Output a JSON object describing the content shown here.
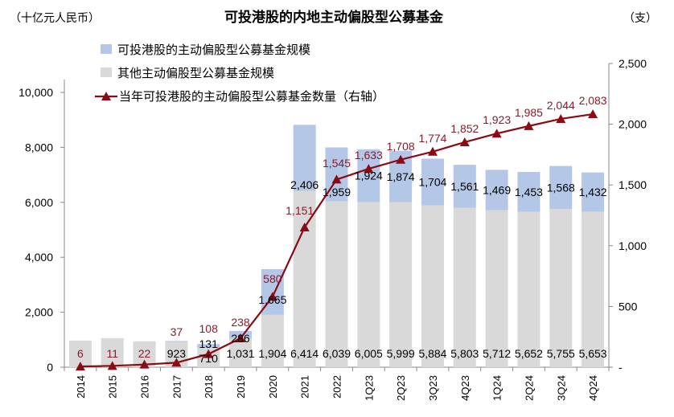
{
  "chart_data": {
    "type": "bar+line",
    "title": "可投港股的内地主动偏股型公募基金",
    "left_unit": "（十亿元人民币）",
    "right_unit": "（支）",
    "categories": [
      "2014",
      "2015",
      "2016",
      "2017",
      "2018",
      "2019",
      "2020",
      "2021",
      "2022",
      "1Q23",
      "2Q23",
      "3Q23",
      "4Q23",
      "1Q24",
      "2Q24",
      "3Q24",
      "4Q24"
    ],
    "left_axis": {
      "range": [
        0,
        10000
      ],
      "ticks": [
        "0",
        "2,000",
        "4,000",
        "6,000",
        "8,000",
        "10,000"
      ]
    },
    "right_axis": {
      "range": [
        0,
        2500
      ],
      "ticks": [
        "-",
        "500",
        "1,000",
        "1,500",
        "2,000",
        "2,500"
      ]
    },
    "grid": false,
    "legend_placement": "top-left",
    "series": [
      {
        "name": "可投港股的主动偏股型公募基金规模",
        "kind": "stacked-bar",
        "axis": "left",
        "color": "#b4c7e7",
        "values": [
          0,
          5,
          10,
          30,
          131,
          286,
          1665,
          2406,
          1959,
          1924,
          1874,
          1704,
          1561,
          1469,
          1453,
          1568,
          1432
        ],
        "labels": [
          "",
          "",
          "",
          "",
          "131",
          "286",
          "1,665",
          "2,406",
          "1,959",
          "1,924",
          "1,874",
          "1,704",
          "1,561",
          "1,469",
          "1,453",
          "1,568",
          "1,432"
        ]
      },
      {
        "name": "其他主动偏股型公募基金规模",
        "kind": "stacked-bar",
        "axis": "left",
        "color": "#d9d9d9",
        "values": [
          970,
          1050,
          930,
          923,
          710,
          1031,
          1904,
          6414,
          6039,
          6005,
          5999,
          5884,
          5803,
          5712,
          5652,
          5755,
          5653
        ],
        "labels": [
          "",
          "",
          "",
          "923",
          "710",
          "1,031",
          "1,904",
          "6,414",
          "6,039",
          "6,005",
          "5,999",
          "5,884",
          "5,803",
          "5,712",
          "5,652",
          "5,755",
          "5,653"
        ]
      },
      {
        "name": "当年可投港股的主动偏股型公募基金数量（右轴）",
        "kind": "line",
        "axis": "right",
        "color": "#8b0a14",
        "values": [
          6,
          11,
          22,
          37,
          108,
          238,
          580,
          1151,
          1545,
          1633,
          1708,
          1774,
          1852,
          1923,
          1985,
          2044,
          2083
        ],
        "labels": [
          "6",
          "11",
          "22",
          "37",
          "108",
          "238",
          "580",
          "1,151",
          "1,545",
          "1,633",
          "1,708",
          "1,774",
          "1,852",
          "1,923",
          "1,985",
          "2,044",
          "2,083"
        ]
      }
    ]
  }
}
